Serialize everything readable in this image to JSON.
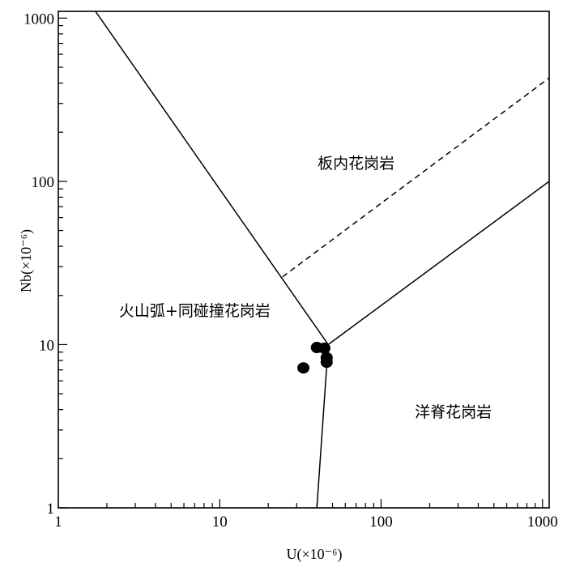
{
  "chart_data": {
    "type": "scatter",
    "title": "",
    "xlabel": "U(×10⁻⁶)",
    "ylabel": "Nb(×10⁻⁶)",
    "x_scale": "log",
    "y_scale": "log",
    "xlim": [
      1,
      1100
    ],
    "ylim": [
      1,
      1100
    ],
    "x_ticks": [
      {
        "value": 1,
        "label": "1"
      },
      {
        "value": 10,
        "label": "10"
      },
      {
        "value": 100,
        "label": "100"
      },
      {
        "value": 1000,
        "label": "1000"
      }
    ],
    "y_ticks": [
      {
        "value": 1,
        "label": "1"
      },
      {
        "value": 10,
        "label": "10"
      },
      {
        "value": 100,
        "label": "100"
      },
      {
        "value": 1000,
        "label": "1000"
      }
    ],
    "grid": false,
    "legend": "none",
    "points": [
      {
        "x": 40,
        "y": 9.6
      },
      {
        "x": 44.5,
        "y": 9.5
      },
      {
        "x": 46,
        "y": 8.3
      },
      {
        "x": 46,
        "y": 7.8
      },
      {
        "x": 33,
        "y": 7.2
      }
    ],
    "boundary_lines": [
      {
        "style": "solid",
        "points": [
          [
            1.7,
            1100
          ],
          [
            47,
            10
          ]
        ]
      },
      {
        "style": "solid",
        "points": [
          [
            47,
            10
          ],
          [
            1100,
            100
          ]
        ]
      },
      {
        "style": "solid",
        "points": [
          [
            47,
            10
          ],
          [
            40,
            1
          ]
        ]
      },
      {
        "style": "dashed",
        "points": [
          [
            24.5,
            26
          ],
          [
            1100,
            430
          ]
        ]
      }
    ],
    "region_labels": [
      {
        "text": "板内花岗岩",
        "x": 70,
        "y": 120
      },
      {
        "text": "火山弧+同碰撞花岗岩",
        "x": 7,
        "y": 15
      },
      {
        "text": "洋脊花岗岩",
        "x": 280,
        "y": 3.6
      }
    ]
  }
}
